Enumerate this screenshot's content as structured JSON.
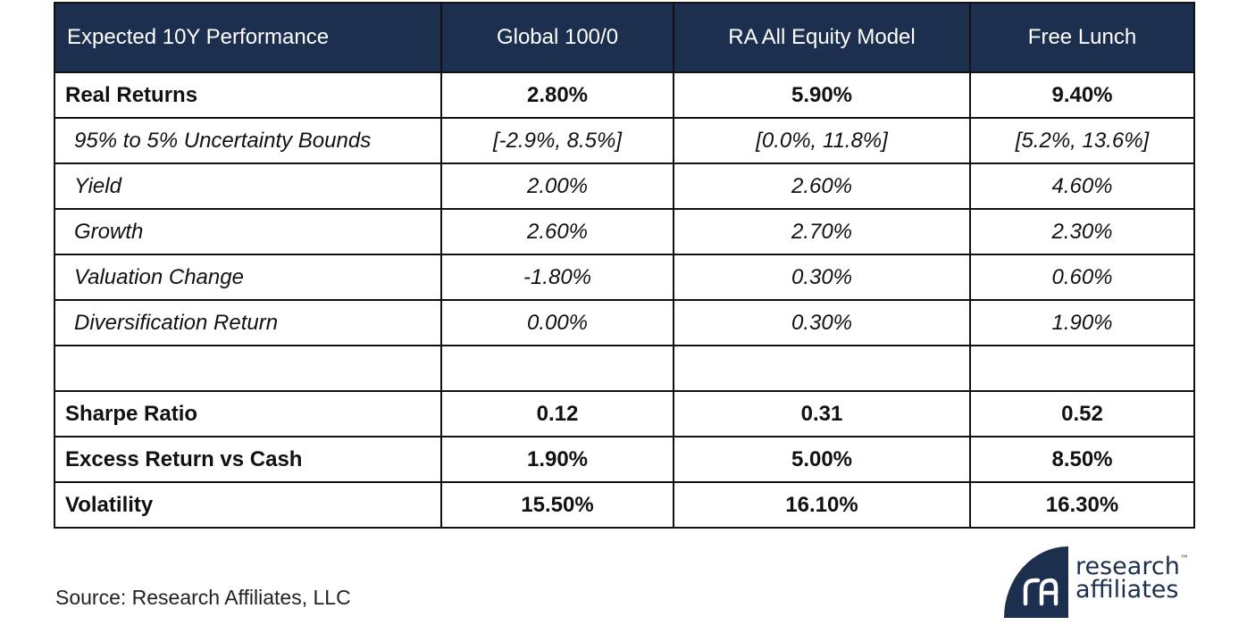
{
  "table": {
    "header": [
      "Expected 10Y Performance",
      "Global 100/0",
      "RA All Equity Model",
      "Free Lunch"
    ],
    "rows": [
      {
        "style": "bold",
        "cells": [
          "Real Returns",
          "2.80%",
          "5.90%",
          "9.40%"
        ]
      },
      {
        "style": "sub",
        "cells": [
          "95% to 5% Uncertainty Bounds",
          "[-2.9%, 8.5%]",
          "[0.0%, 11.8%]",
          "[5.2%, 13.6%]"
        ]
      },
      {
        "style": "sub",
        "cells": [
          "Yield",
          "2.00%",
          "2.60%",
          "4.60%"
        ]
      },
      {
        "style": "sub",
        "cells": [
          "Growth",
          "2.60%",
          "2.70%",
          "2.30%"
        ]
      },
      {
        "style": "sub",
        "cells": [
          "Valuation Change",
          "-1.80%",
          "0.30%",
          "0.60%"
        ]
      },
      {
        "style": "sub",
        "cells": [
          "Diversification Return",
          "0.00%",
          "0.30%",
          "1.90%"
        ]
      },
      {
        "style": "empty",
        "cells": [
          "",
          "",
          "",
          ""
        ]
      },
      {
        "style": "bold",
        "cells": [
          "Sharpe Ratio",
          "0.12",
          "0.31",
          "0.52"
        ]
      },
      {
        "style": "bold",
        "cells": [
          "Excess Return vs Cash",
          "1.90%",
          "5.00%",
          "8.50%"
        ]
      },
      {
        "style": "bold",
        "cells": [
          "Volatility",
          "15.50%",
          "16.10%",
          "16.30%"
        ]
      }
    ]
  },
  "footer": {
    "source": "Source: Research Affiliates, LLC"
  },
  "logo": {
    "line1": "research",
    "trademark": "™",
    "line2": "affiliates",
    "color": "#1c2f4f"
  },
  "colors": {
    "header_bg": "#1c2f4f",
    "header_text": "#ffffff",
    "border": "#111111"
  }
}
